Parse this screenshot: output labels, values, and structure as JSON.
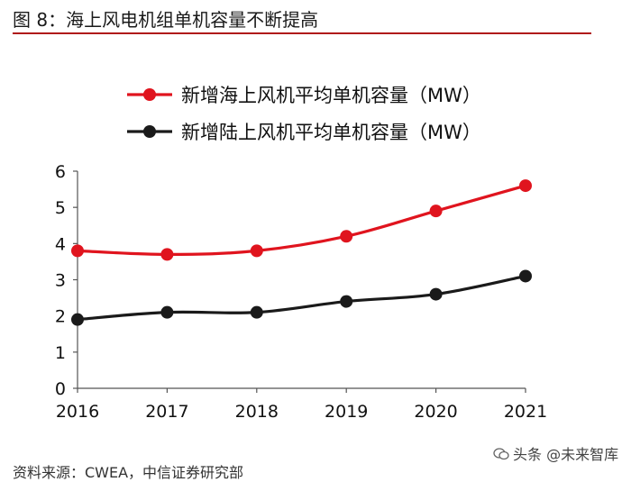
{
  "figure": {
    "title": "图 8：海上风电机组单机容量不断提高",
    "source_note": "资料来源：CWEA，中信证券研究部",
    "watermark": "头条 @未来智库",
    "accent_color": "#b01a1a"
  },
  "chart_data": {
    "type": "line",
    "title": "",
    "xlabel": "",
    "ylabel": "",
    "x": [
      "2016",
      "2017",
      "2018",
      "2019",
      "2020",
      "2021"
    ],
    "ylim": [
      0,
      6
    ],
    "yticks": [
      0,
      1,
      2,
      3,
      4,
      5,
      6
    ],
    "grid": false,
    "legend_position": "top",
    "series": [
      {
        "name": "新增海上风机平均单机容量（MW）",
        "color": "#e0141e",
        "values": [
          3.8,
          3.7,
          3.8,
          4.2,
          4.9,
          5.6
        ]
      },
      {
        "name": "新增陆上风机平均单机容量（MW）",
        "color": "#1a1a1a",
        "values": [
          1.9,
          2.1,
          2.1,
          2.4,
          2.6,
          3.1
        ]
      }
    ]
  }
}
